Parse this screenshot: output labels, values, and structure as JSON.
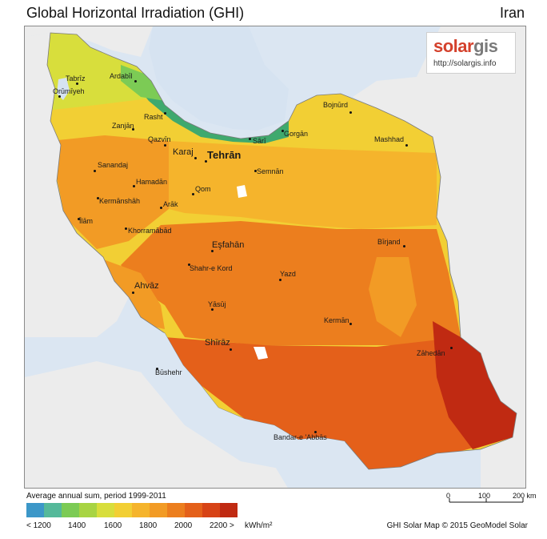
{
  "title": "Global Horizontal Irradiation (GHI)",
  "country": "Iran",
  "logo": {
    "brand_red": "solar",
    "brand_gray": "gis",
    "url": "http://solargis.info"
  },
  "legend": {
    "caption": "Average annual sum, period 1999-2011",
    "colors": [
      "#3c97c8",
      "#55b99a",
      "#7ccb55",
      "#a8d443",
      "#d8de3c",
      "#f2cf34",
      "#f5b42c",
      "#f29b25",
      "#ec7e1e",
      "#e4601a",
      "#d74316",
      "#c02a12"
    ],
    "ticks": [
      "< 1200",
      "1400",
      "1600",
      "1800",
      "2000",
      "2200 >"
    ],
    "unit": "kWh/m²"
  },
  "scale": {
    "labels": [
      "0",
      "100",
      "200 km"
    ]
  },
  "credit": "GHI Solar Map © 2015 GeoModel Solar",
  "cities": [
    {
      "name": "Tabrīz"
    },
    {
      "name": "Ardabīl"
    },
    {
      "name": "Orūmīyeh"
    },
    {
      "name": "Rasht"
    },
    {
      "name": "Zanjān"
    },
    {
      "name": "Qazvīn"
    },
    {
      "name": "Sārī"
    },
    {
      "name": "Gorgān"
    },
    {
      "name": "Bojnūrd"
    },
    {
      "name": "Mashhad"
    },
    {
      "name": "Karaj"
    },
    {
      "name": "Tehrān"
    },
    {
      "name": "Semnān"
    },
    {
      "name": "Sanandaj"
    },
    {
      "name": "Hamadān"
    },
    {
      "name": "Qom"
    },
    {
      "name": "Kermānshāh"
    },
    {
      "name": "Arāk"
    },
    {
      "name": "Īlām"
    },
    {
      "name": "Khorramābād"
    },
    {
      "name": "Eşfahān"
    },
    {
      "name": "Bīrjand"
    },
    {
      "name": "Shahr-e Kord"
    },
    {
      "name": "Yazd"
    },
    {
      "name": "Ahvāz"
    },
    {
      "name": "Yāsūj"
    },
    {
      "name": "Kermān"
    },
    {
      "name": "Shīrāz"
    },
    {
      "name": "Zāhedān"
    },
    {
      "name": "Būshehr"
    },
    {
      "name": "Bandar-e 'Abbās"
    }
  ]
}
